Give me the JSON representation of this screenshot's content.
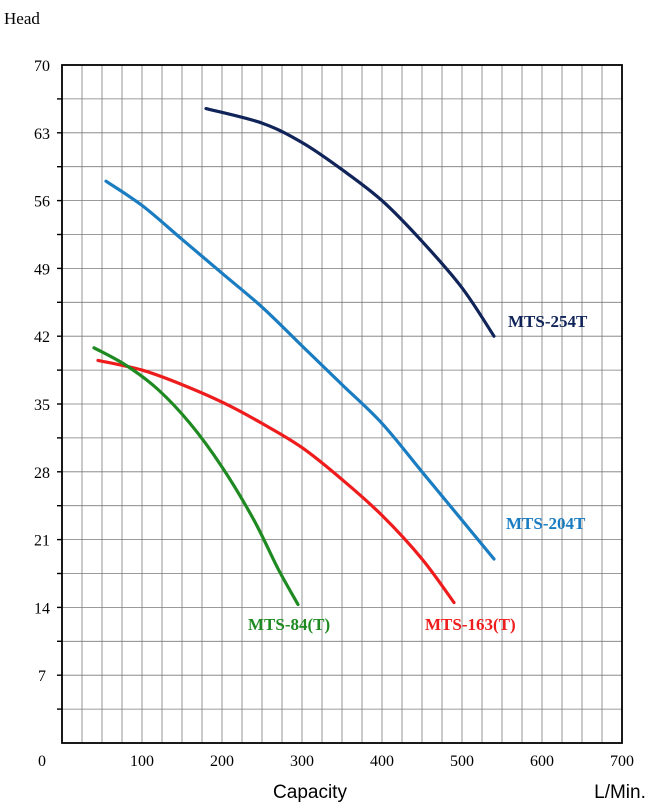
{
  "chart_data": {
    "type": "line",
    "title": "",
    "ylabel": "Head",
    "xlabel": "Capacity",
    "xunit": "L/Min.",
    "xlim": [
      0,
      700
    ],
    "ylim": [
      0,
      70
    ],
    "x_ticks": [
      0,
      100,
      200,
      300,
      400,
      500,
      600,
      700
    ],
    "y_ticks": [
      7,
      14,
      21,
      28,
      35,
      42,
      49,
      56,
      63,
      70
    ],
    "grid": true,
    "series": [
      {
        "name": "MTS-254T",
        "color": "#10245a",
        "points": [
          [
            180,
            65.5
          ],
          [
            250,
            64.0
          ],
          [
            300,
            62.0
          ],
          [
            350,
            59.2
          ],
          [
            400,
            56.0
          ],
          [
            450,
            51.8
          ],
          [
            500,
            47.0
          ],
          [
            540,
            42.0
          ]
        ]
      },
      {
        "name": "MTS-204T",
        "color": "#1a7cc1",
        "points": [
          [
            55,
            58.0
          ],
          [
            100,
            55.5
          ],
          [
            150,
            52.0
          ],
          [
            200,
            48.5
          ],
          [
            250,
            45.0
          ],
          [
            300,
            41.0
          ],
          [
            350,
            37.0
          ],
          [
            400,
            33.0
          ],
          [
            450,
            28.0
          ],
          [
            500,
            23.0
          ],
          [
            540,
            19.0
          ]
        ]
      },
      {
        "name": "MTS-163(T)",
        "color": "#ee1c1c",
        "points": [
          [
            45,
            39.5
          ],
          [
            100,
            38.5
          ],
          [
            150,
            37.0
          ],
          [
            200,
            35.2
          ],
          [
            250,
            33.0
          ],
          [
            300,
            30.5
          ],
          [
            350,
            27.2
          ],
          [
            400,
            23.5
          ],
          [
            450,
            19.0
          ],
          [
            490,
            14.5
          ]
        ]
      },
      {
        "name": "MTS-84(T)",
        "color": "#1f8a22",
        "points": [
          [
            40,
            40.8
          ],
          [
            80,
            39.0
          ],
          [
            120,
            36.5
          ],
          [
            160,
            33.0
          ],
          [
            200,
            28.5
          ],
          [
            240,
            23.0
          ],
          [
            270,
            18.0
          ],
          [
            295,
            14.3
          ]
        ]
      }
    ]
  }
}
